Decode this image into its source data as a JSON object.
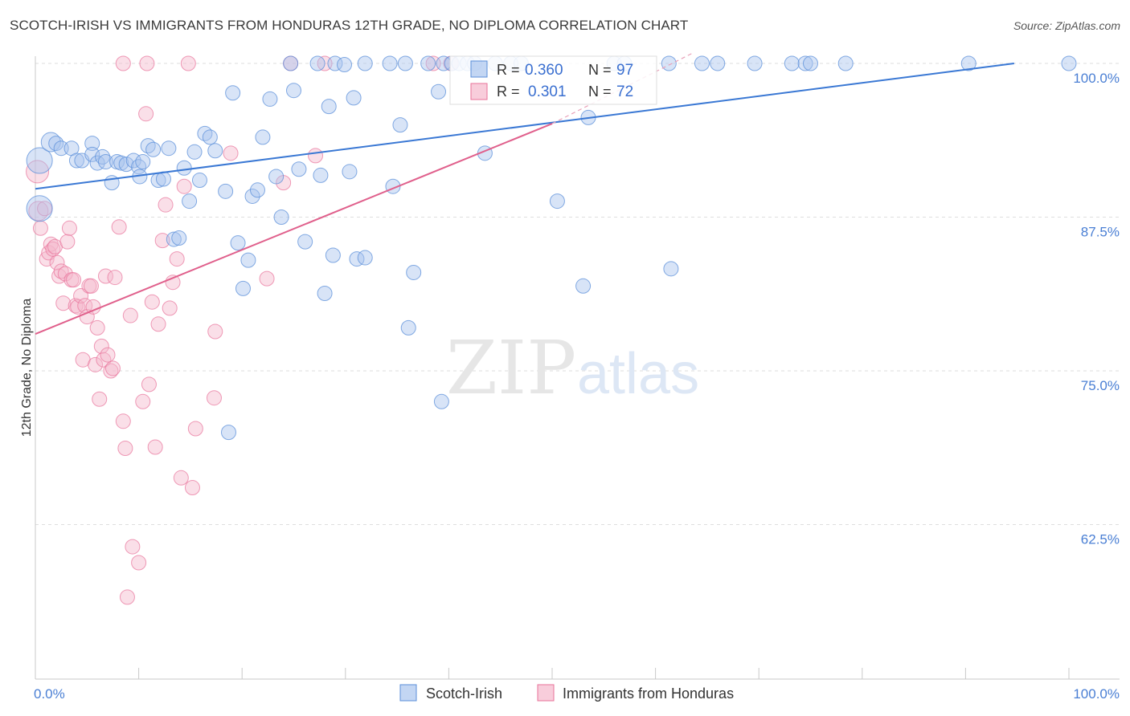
{
  "title": "SCOTCH-IRISH VS IMMIGRANTS FROM HONDURAS 12TH GRADE, NO DIPLOMA CORRELATION CHART",
  "source": "Source: ZipAtlas.com",
  "watermark": {
    "zip": "ZIP",
    "atlas": "atlas"
  },
  "colors": {
    "blue": "#5b8fd9",
    "blue_fill": "#a9c4ee",
    "pink": "#e8729a",
    "pink_fill": "#f5b8cc",
    "tick_text": "#4a7fd4"
  },
  "chart_data": {
    "type": "scatter",
    "ylabel": "12th Grade, No Diploma",
    "xlabel": "",
    "xlim": [
      0,
      100
    ],
    "ylim": [
      51.5,
      101.5
    ],
    "x_tick_labels": [
      "0.0%",
      "100.0%"
    ],
    "y_ticks": [
      62.5,
      75.0,
      87.5,
      100.0
    ],
    "y_tick_labels": [
      "62.5%",
      "75.0%",
      "87.5%",
      "100.0%"
    ],
    "grid": "horizontal dashed",
    "legend_position": "top-center",
    "series": [
      {
        "name": "Scotch-Irish",
        "color": "#5b8fd9",
        "R": "0.360",
        "N": "97",
        "trend": {
          "x": [
            0,
            94.7
          ],
          "y": [
            89.8,
            100.0
          ]
        },
        "points": [
          [
            0.4,
            92.1,
            16
          ],
          [
            0.4,
            88.2,
            16
          ],
          [
            1.5,
            93.6,
            12
          ],
          [
            2.0,
            93.5,
            9
          ],
          [
            2.5,
            93.1,
            9
          ],
          [
            3.5,
            93.1,
            9
          ],
          [
            4.0,
            92.1,
            9
          ],
          [
            4.5,
            92.1,
            9
          ],
          [
            5.5,
            93.5,
            9
          ],
          [
            5.5,
            92.6,
            9
          ],
          [
            6.0,
            91.9,
            9
          ],
          [
            6.5,
            92.4,
            9
          ],
          [
            6.8,
            92.0,
            9
          ],
          [
            7.4,
            90.3,
            9
          ],
          [
            7.9,
            92.0,
            9
          ],
          [
            8.3,
            91.9,
            9
          ],
          [
            8.8,
            91.8,
            9
          ],
          [
            9.5,
            92.1,
            9
          ],
          [
            10.0,
            91.6,
            9
          ],
          [
            10.1,
            90.8,
            9
          ],
          [
            10.4,
            92.0,
            9
          ],
          [
            10.9,
            93.3,
            9
          ],
          [
            11.4,
            93.0,
            9
          ],
          [
            11.9,
            90.5,
            9
          ],
          [
            12.4,
            90.6,
            9
          ],
          [
            12.9,
            93.1,
            9
          ],
          [
            13.4,
            85.7,
            9
          ],
          [
            13.9,
            85.8,
            9
          ],
          [
            14.4,
            91.5,
            9
          ],
          [
            14.9,
            88.8,
            9
          ],
          [
            15.4,
            92.8,
            9
          ],
          [
            15.9,
            90.5,
            9
          ],
          [
            16.4,
            94.3,
            9
          ],
          [
            16.9,
            94.0,
            9
          ],
          [
            17.4,
            92.9,
            9
          ],
          [
            18.4,
            89.6,
            9
          ],
          [
            19.1,
            97.6,
            9
          ],
          [
            19.6,
            85.4,
            9
          ],
          [
            20.1,
            81.7,
            9
          ],
          [
            20.6,
            84.0,
            9
          ],
          [
            21.0,
            89.2,
            9
          ],
          [
            21.5,
            89.7,
            9
          ],
          [
            22.0,
            94.0,
            9
          ],
          [
            22.7,
            97.1,
            9
          ],
          [
            23.3,
            90.8,
            9
          ],
          [
            23.8,
            87.5,
            9
          ],
          [
            24.7,
            100.0,
            9
          ],
          [
            25.0,
            97.8,
            9
          ],
          [
            25.5,
            91.4,
            9
          ],
          [
            26.1,
            85.5,
            9
          ],
          [
            27.3,
            100.0,
            9
          ],
          [
            27.6,
            90.9,
            9
          ],
          [
            28.0,
            81.3,
            9
          ],
          [
            28.4,
            96.5,
            9
          ],
          [
            28.8,
            84.4,
            9
          ],
          [
            29.0,
            100.0,
            9
          ],
          [
            29.9,
            99.9,
            9
          ],
          [
            30.4,
            91.2,
            9
          ],
          [
            30.8,
            97.2,
            9
          ],
          [
            31.1,
            84.1,
            9
          ],
          [
            31.9,
            84.2,
            9
          ],
          [
            31.9,
            100.0,
            9
          ],
          [
            34.3,
            100.0,
            9
          ],
          [
            34.6,
            90.0,
            9
          ],
          [
            35.3,
            95.0,
            9
          ],
          [
            35.8,
            100.0,
            9
          ],
          [
            36.1,
            78.5,
            9
          ],
          [
            36.6,
            83.0,
            9
          ],
          [
            38.0,
            100.0,
            9
          ],
          [
            39.0,
            97.7,
            9
          ],
          [
            39.5,
            100.0,
            9
          ],
          [
            39.3,
            72.5,
            9
          ],
          [
            40.3,
            100.0,
            9
          ],
          [
            41.0,
            100.0,
            9
          ],
          [
            41.8,
            100.0,
            9
          ],
          [
            42.5,
            100.0,
            9
          ],
          [
            43.5,
            92.7,
            9
          ],
          [
            44.5,
            100.0,
            9
          ],
          [
            46.0,
            100.0,
            9
          ],
          [
            47.0,
            100.0,
            9
          ],
          [
            50.5,
            88.8,
            9
          ],
          [
            53.0,
            81.9,
            9
          ],
          [
            53.5,
            95.6,
            9
          ],
          [
            56.0,
            100.0,
            9
          ],
          [
            57.0,
            100.0,
            9
          ],
          [
            61.3,
            100.0,
            9
          ],
          [
            61.5,
            83.3,
            9
          ],
          [
            64.5,
            100.0,
            9
          ],
          [
            66.0,
            100.0,
            9
          ],
          [
            69.6,
            100.0,
            9
          ],
          [
            73.2,
            100.0,
            9
          ],
          [
            74.5,
            100.0,
            9
          ],
          [
            75.0,
            100.0,
            9
          ],
          [
            78.4,
            100.0,
            9
          ],
          [
            90.3,
            100.0,
            9
          ],
          [
            100.0,
            100.0,
            9
          ],
          [
            18.7,
            70.0,
            9
          ]
        ]
      },
      {
        "name": "Immigrants from Honduras",
        "color": "#e8729a",
        "R": "0.301",
        "N": "72",
        "trend": {
          "x": [
            0,
            50
          ],
          "y": [
            78.0,
            95.1
          ]
        },
        "trend_dashed": {
          "x": [
            50,
            63.5
          ],
          "y": [
            95.1,
            100.8
          ]
        },
        "points": [
          [
            0.2,
            91.2,
            14
          ],
          [
            0.3,
            88.0,
            12
          ],
          [
            0.5,
            86.6,
            9
          ],
          [
            0.9,
            88.2,
            9
          ],
          [
            1.1,
            84.1,
            9
          ],
          [
            1.3,
            84.6,
            9
          ],
          [
            1.5,
            85.3,
            9
          ],
          [
            1.7,
            84.9,
            9
          ],
          [
            1.9,
            85.1,
            9
          ],
          [
            2.1,
            83.8,
            9
          ],
          [
            2.3,
            82.7,
            9
          ],
          [
            2.5,
            83.1,
            9
          ],
          [
            2.7,
            80.5,
            9
          ],
          [
            2.9,
            82.9,
            9
          ],
          [
            3.1,
            85.5,
            9
          ],
          [
            3.3,
            86.6,
            9
          ],
          [
            3.5,
            82.4,
            9
          ],
          [
            3.7,
            82.4,
            9
          ],
          [
            3.9,
            80.3,
            9
          ],
          [
            4.1,
            80.2,
            9
          ],
          [
            4.4,
            81.1,
            9
          ],
          [
            4.6,
            75.9,
            9
          ],
          [
            4.8,
            80.3,
            9
          ],
          [
            5.0,
            79.4,
            9
          ],
          [
            5.2,
            81.9,
            9
          ],
          [
            5.4,
            81.9,
            9
          ],
          [
            5.6,
            80.2,
            9
          ],
          [
            5.8,
            75.5,
            9
          ],
          [
            6.0,
            78.5,
            9
          ],
          [
            6.2,
            72.7,
            9
          ],
          [
            6.4,
            77.0,
            9
          ],
          [
            6.6,
            75.9,
            9
          ],
          [
            6.8,
            82.7,
            9
          ],
          [
            7.0,
            76.3,
            9
          ],
          [
            7.3,
            75.0,
            9
          ],
          [
            7.5,
            75.2,
            9
          ],
          [
            7.7,
            82.6,
            9
          ],
          [
            8.1,
            86.7,
            9
          ],
          [
            8.5,
            70.9,
            9
          ],
          [
            8.7,
            68.7,
            9
          ],
          [
            8.9,
            56.6,
            9
          ],
          [
            9.2,
            79.5,
            9
          ],
          [
            9.4,
            60.7,
            9
          ],
          [
            10.0,
            59.4,
            9
          ],
          [
            10.4,
            72.5,
            9
          ],
          [
            10.7,
            95.9,
            9
          ],
          [
            11.0,
            73.9,
            9
          ],
          [
            11.3,
            80.6,
            9
          ],
          [
            11.6,
            68.8,
            9
          ],
          [
            11.9,
            78.8,
            9
          ],
          [
            12.3,
            85.6,
            9
          ],
          [
            12.6,
            88.5,
            9
          ],
          [
            13.0,
            80.1,
            9
          ],
          [
            13.3,
            82.2,
            9
          ],
          [
            13.7,
            84.1,
            9
          ],
          [
            14.1,
            66.3,
            9
          ],
          [
            14.4,
            90.0,
            9
          ],
          [
            15.2,
            65.5,
            9
          ],
          [
            15.5,
            70.3,
            9
          ],
          [
            17.3,
            72.8,
            9
          ],
          [
            17.4,
            78.2,
            9
          ],
          [
            18.9,
            92.7,
            9
          ],
          [
            22.4,
            82.5,
            9
          ],
          [
            24.0,
            90.3,
            9
          ],
          [
            27.1,
            92.5,
            9
          ],
          [
            8.5,
            100.0,
            9
          ],
          [
            10.8,
            100.0,
            9
          ],
          [
            14.8,
            100.0,
            9
          ],
          [
            24.7,
            100.0,
            9
          ],
          [
            28.0,
            100.0,
            9
          ],
          [
            38.5,
            100.0,
            9
          ],
          [
            40.2,
            100.0,
            9
          ]
        ]
      }
    ]
  }
}
